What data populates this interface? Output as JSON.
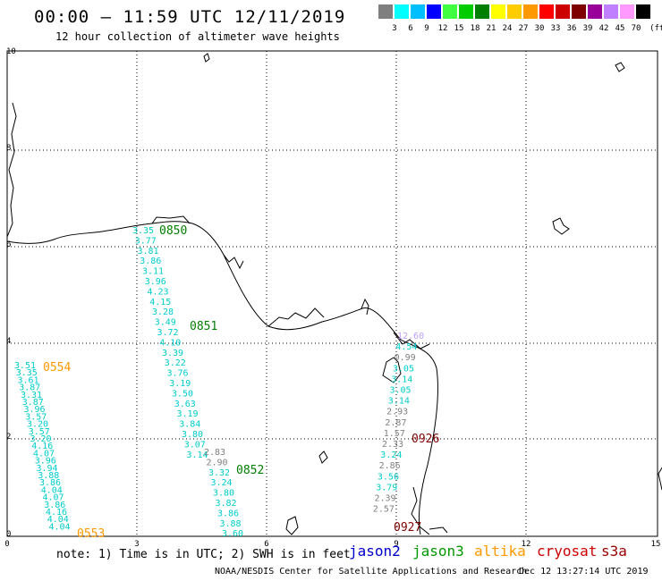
{
  "header": {
    "title": "00:00 – 11:59 UTC 12/11/2019",
    "subtitle": "12 hour collection of altimeter wave heights"
  },
  "scale": {
    "colors": [
      "#7f7f7f",
      "#00ffff",
      "#00bfff",
      "#0000ff",
      "#40ff40",
      "#00cc00",
      "#007f00",
      "#ffff00",
      "#ffcc00",
      "#ff9900",
      "#ff0000",
      "#cc0000",
      "#7f0000",
      "#990099",
      "#bf7fff",
      "#ff99ff",
      "#000000"
    ],
    "labels": [
      "3",
      "6",
      "9",
      "12",
      "15",
      "18",
      "21",
      "24",
      "27",
      "30",
      "33",
      "36",
      "39",
      "42",
      "45",
      "70"
    ],
    "unit": "(ft)"
  },
  "axes": {
    "x_ticks": [
      "0",
      "3",
      "6",
      "9",
      "12",
      "15"
    ],
    "y_ticks": [
      "0",
      "2",
      "4",
      "6",
      "8",
      "10"
    ]
  },
  "tracks": [
    {
      "name": "jason3-track-0850",
      "color": "#00cccc",
      "labels": [
        "3.35",
        "3.77",
        "3.81",
        "3.86",
        "3.11",
        "3.96",
        "4.23",
        "4.15",
        "3.28",
        "3.49",
        "3.72",
        "4.10",
        "3.39",
        "3.22",
        "3.76",
        "3.19",
        "3.50",
        "3.63",
        "3.19",
        "3.84",
        "3.80",
        "3.07",
        "3.14"
      ]
    },
    {
      "name": "jason3-track-0852",
      "color": "#00cccc",
      "labels": [
        "2.83",
        "2.90",
        "3.32",
        "3.24",
        "3.80",
        "3.82",
        "3.86",
        "3.88",
        "3.60"
      ]
    },
    {
      "name": "altika-track-0554",
      "color": "#00cccc",
      "labels": [
        "3.51",
        "3.35",
        "3.61",
        "3.87",
        "3.31",
        "3.87",
        "3.96",
        "3.57",
        "3.20",
        "3.57",
        "3.20",
        "4.16",
        "4.07",
        "3.96",
        "3.94",
        "3.88",
        "3.86",
        "4.04",
        "4.07",
        "3.86",
        "4.16",
        "4.04",
        "4.04"
      ]
    },
    {
      "name": "jason2-track-0926",
      "color": "#00cccc",
      "labels": [
        "12.60",
        "4.54",
        "0.99",
        "3.05",
        "3.14",
        "3.05",
        "3.14",
        "2.93",
        "2.87",
        "1.57",
        "2.33",
        "3.24",
        "2.86",
        "3.56",
        "3.79",
        "2.39",
        "2.57"
      ]
    }
  ],
  "pass_labels": [
    {
      "text": "0850",
      "color": "#007f00"
    },
    {
      "text": "0851",
      "color": "#007f00"
    },
    {
      "text": "0852",
      "color": "#007f00"
    },
    {
      "text": "0554",
      "color": "#ff9900"
    },
    {
      "text": "0553",
      "color": "#ff9900"
    },
    {
      "text": "0926",
      "color": "#7f0000"
    },
    {
      "text": "0927",
      "color": "#7f0000"
    }
  ],
  "footer": {
    "note": "note: 1) Time is in UTC; 2) SWH is in feet",
    "legend": [
      {
        "text": "jason2",
        "color": "#0000cc"
      },
      {
        "text": "jason3",
        "color": "#009900"
      },
      {
        "text": "altika",
        "color": "#ff9900"
      },
      {
        "text": "cryosat",
        "color": "#cc0000"
      },
      {
        "text": "s3a",
        "color": "#990000"
      }
    ],
    "credit": "NOAA/NESDIS Center for Satellite Applications and Research",
    "timestamp": "Dec 12 13:27:14 UTC 2019"
  }
}
